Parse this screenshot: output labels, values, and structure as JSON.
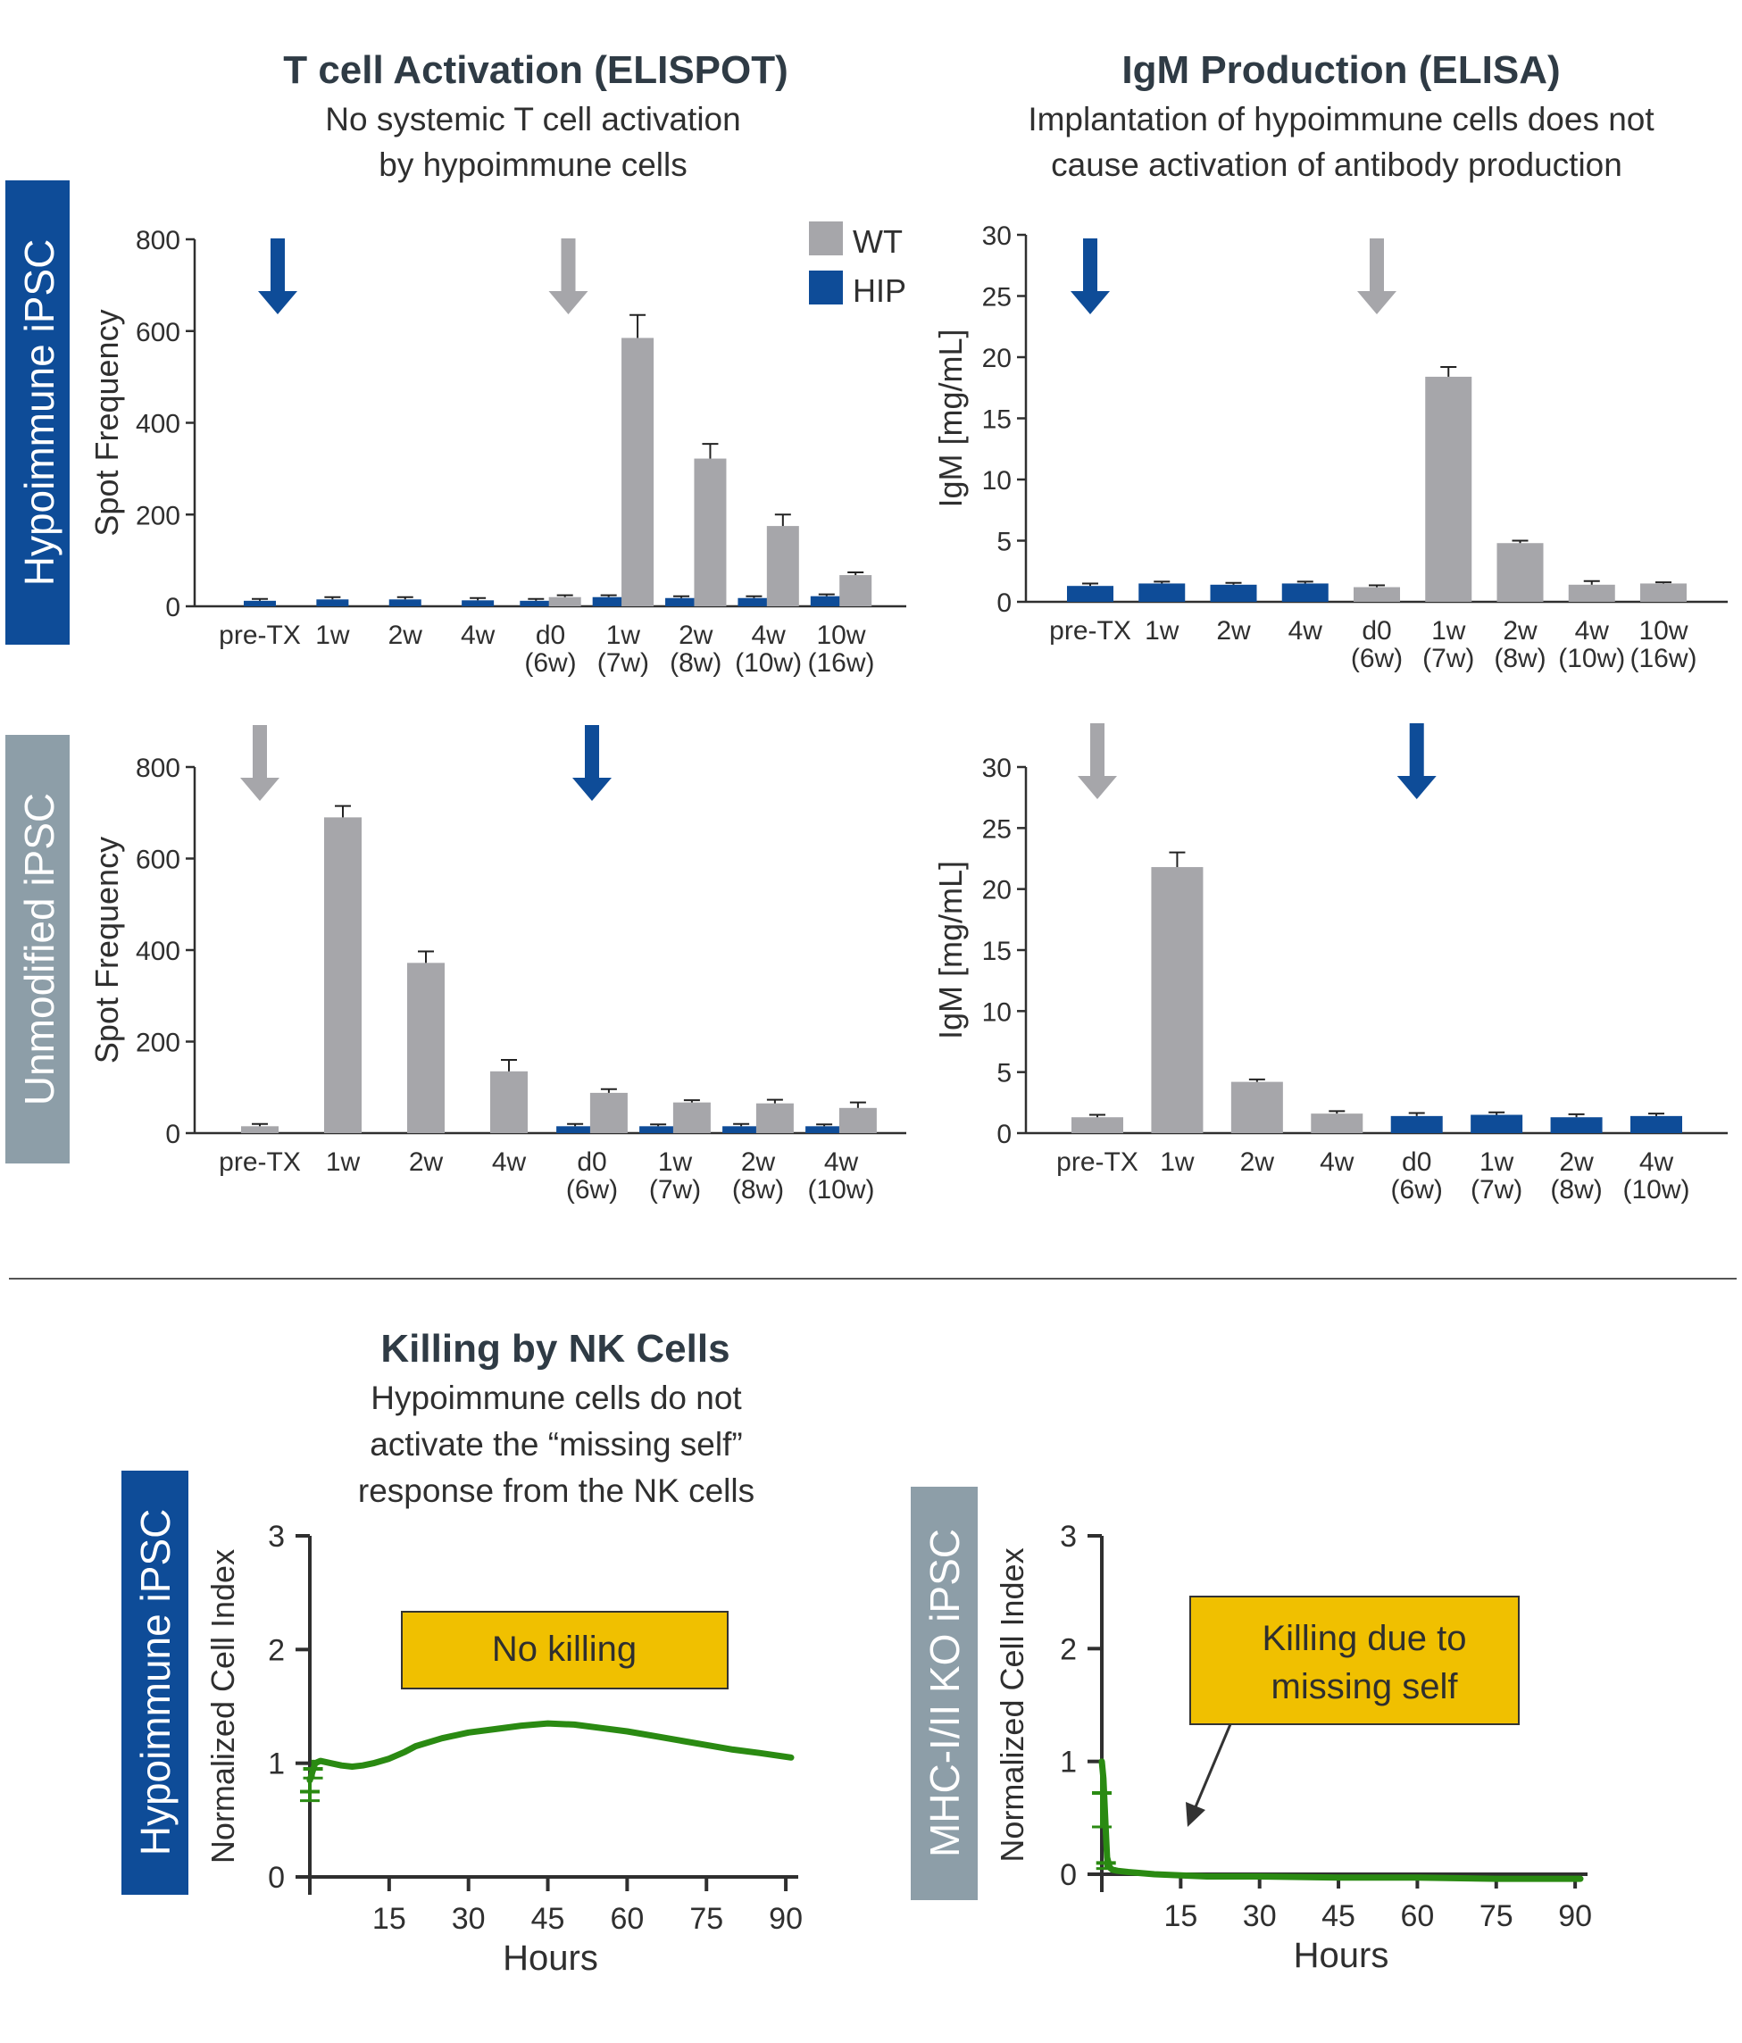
{
  "colors": {
    "wt": "#a6a6aa",
    "hip": "#0e4c98",
    "navy_label": "#0e4c98",
    "gray_label": "#8d9ea8",
    "curve": "#2a8a12",
    "annotation_box": "#f0c000",
    "axis": "#2f2f2f"
  },
  "headers": {
    "elispot": {
      "title": "T cell Activation (ELISPOT)",
      "sub1": "No systemic T cell activation",
      "sub2": "by hypoimmune cells"
    },
    "elisa": {
      "title": "IgM Production (ELISA)",
      "sub1": "Implantation of hypoimmune cells does not",
      "sub2": "cause activation of antibody production"
    },
    "nk": {
      "title": "Killing by NK Cells",
      "sub1": "Hypoimmune cells do not",
      "sub2": "activate the “missing self”",
      "sub3": "response from the NK cells"
    }
  },
  "row_labels": {
    "hip_top": "Hypoimmune iPSC",
    "unmod": "Unmodified iPSC",
    "hip_nk": "Hypoimmune iPSC",
    "ko_nk": "MHC-I/II KO iPSC"
  },
  "legend": {
    "wt": "WT",
    "hip": "HIP"
  },
  "annotations": {
    "no_killing": "No killing",
    "killing_line1": "Killing due to",
    "killing_line2": "missing self"
  },
  "chart_data": [
    {
      "id": "elispot_hip",
      "type": "bar",
      "ylabel": "Spot Frequency",
      "ylim": [
        0,
        800
      ],
      "yticks": [
        0,
        200,
        400,
        600,
        800
      ],
      "categories": [
        [
          "pre-TX"
        ],
        [
          "1w"
        ],
        [
          "2w"
        ],
        [
          "4w"
        ],
        [
          "d0",
          "(6w)"
        ],
        [
          "1w",
          "(7w)"
        ],
        [
          "2w",
          "(8w)"
        ],
        [
          "4w",
          "(10w)"
        ],
        [
          "10w",
          "(16w)"
        ]
      ],
      "series": [
        {
          "name": "HIP",
          "values": [
            12,
            15,
            15,
            13,
            12,
            20,
            18,
            18,
            22
          ],
          "errors": [
            4,
            5,
            5,
            5,
            4,
            4,
            4,
            4,
            4
          ]
        },
        {
          "name": "WT",
          "values": [
            null,
            null,
            null,
            null,
            20,
            585,
            322,
            175,
            68
          ],
          "errors": [
            null,
            null,
            null,
            null,
            4,
            50,
            32,
            25,
            6
          ]
        }
      ],
      "arrows": [
        {
          "series": "HIP",
          "category": 0
        },
        {
          "series": "WT",
          "category": 4
        }
      ]
    },
    {
      "id": "elisa_hip",
      "type": "bar",
      "ylabel": "IgM [mg/mL]",
      "ylim": [
        0,
        30
      ],
      "yticks": [
        0,
        5,
        10,
        15,
        20,
        25,
        30
      ],
      "categories": [
        [
          "pre-TX"
        ],
        [
          "1w"
        ],
        [
          "2w"
        ],
        [
          "4w"
        ],
        [
          "d0",
          "(6w)"
        ],
        [
          "1w",
          "(7w)"
        ],
        [
          "2w",
          "(8w)"
        ],
        [
          "4w",
          "(10w)"
        ],
        [
          "10w",
          "(16w)"
        ]
      ],
      "series": [
        {
          "name": "HIP",
          "values": [
            1.3,
            1.5,
            1.4,
            1.5,
            null,
            null,
            null,
            null,
            null
          ],
          "errors": [
            0.2,
            0.15,
            0.15,
            0.15,
            null,
            null,
            null,
            null,
            null
          ]
        },
        {
          "name": "WT",
          "values": [
            null,
            null,
            null,
            null,
            1.2,
            18.4,
            4.8,
            1.4,
            1.5
          ],
          "errors": [
            null,
            null,
            null,
            null,
            0.15,
            0.8,
            0.2,
            0.3,
            0.1
          ]
        }
      ],
      "arrows": [
        {
          "series": "HIP",
          "category": 0
        },
        {
          "series": "WT",
          "category": 4
        }
      ]
    },
    {
      "id": "elispot_unmod",
      "type": "bar",
      "ylabel": "Spot Frequency",
      "ylim": [
        0,
        800
      ],
      "yticks": [
        0,
        200,
        400,
        600,
        800
      ],
      "categories": [
        [
          "pre-TX"
        ],
        [
          "1w"
        ],
        [
          "2w"
        ],
        [
          "4w"
        ],
        [
          "d0",
          "(6w)"
        ],
        [
          "1w",
          "(7w)"
        ],
        [
          "2w",
          "(8w)"
        ],
        [
          "4w",
          "(10w)"
        ]
      ],
      "series": [
        {
          "name": "HIP",
          "values": [
            null,
            null,
            null,
            null,
            15,
            15,
            15,
            15
          ],
          "errors": [
            null,
            null,
            null,
            null,
            5,
            4,
            5,
            4
          ]
        },
        {
          "name": "WT",
          "values": [
            15,
            690,
            372,
            135,
            88,
            67,
            65,
            55
          ],
          "errors": [
            5,
            25,
            25,
            25,
            8,
            5,
            8,
            12
          ]
        }
      ],
      "arrows": [
        {
          "series": "WT",
          "category": 0
        },
        {
          "series": "HIP",
          "category": 4
        }
      ]
    },
    {
      "id": "elisa_unmod",
      "type": "bar",
      "ylabel": "IgM [mg/mL]",
      "ylim": [
        0,
        30
      ],
      "yticks": [
        0,
        5,
        10,
        15,
        20,
        25,
        30
      ],
      "categories": [
        [
          "pre-TX"
        ],
        [
          "1w"
        ],
        [
          "2w"
        ],
        [
          "4w"
        ],
        [
          "d0",
          "(6w)"
        ],
        [
          "1w",
          "(7w)"
        ],
        [
          "2w",
          "(8w)"
        ],
        [
          "4w",
          "(10w)"
        ]
      ],
      "series": [
        {
          "name": "HIP",
          "values": [
            null,
            null,
            null,
            null,
            1.4,
            1.5,
            1.3,
            1.4
          ],
          "errors": [
            null,
            null,
            null,
            null,
            0.25,
            0.2,
            0.25,
            0.2
          ]
        },
        {
          "name": "WT",
          "values": [
            1.3,
            21.8,
            4.2,
            1.6,
            null,
            null,
            null,
            null
          ],
          "errors": [
            0.2,
            1.2,
            0.2,
            0.2,
            null,
            null,
            null,
            null
          ]
        }
      ],
      "arrows": [
        {
          "series": "WT",
          "category": 0
        },
        {
          "series": "HIP",
          "category": 4
        }
      ]
    },
    {
      "id": "nk_hip",
      "type": "line",
      "ylabel": "Normalized Cell Index",
      "xlabel": "Hours",
      "xlim": [
        0,
        91
      ],
      "ylim": [
        0,
        3
      ],
      "xticks": [
        15,
        30,
        45,
        60,
        75,
        90
      ],
      "yticks": [
        0,
        1,
        2,
        3
      ],
      "series": [
        {
          "name": "Normalized Cell Index",
          "x": [
            0,
            1,
            2,
            4,
            6,
            8,
            10,
            12,
            15,
            18,
            20,
            25,
            30,
            35,
            40,
            45,
            50,
            55,
            60,
            65,
            70,
            75,
            80,
            85,
            91
          ],
          "y": [
            0.85,
            1.0,
            1.02,
            1.0,
            0.98,
            0.97,
            0.98,
            1.0,
            1.04,
            1.1,
            1.15,
            1.22,
            1.27,
            1.3,
            1.33,
            1.35,
            1.34,
            1.31,
            1.28,
            1.24,
            1.2,
            1.16,
            1.12,
            1.09,
            1.05
          ],
          "error_bars": [
            {
              "x": 0,
              "y": 0.75,
              "err": 0.08
            },
            {
              "x": 0.6,
              "y": 0.95,
              "err": 0.08
            }
          ]
        }
      ]
    },
    {
      "id": "nk_ko",
      "type": "line",
      "ylabel": "Normalized Cell Index",
      "xlabel": "Hours",
      "xlim": [
        0,
        91
      ],
      "ylim": [
        0,
        3
      ],
      "xticks": [
        15,
        30,
        45,
        60,
        75,
        90
      ],
      "yticks": [
        0,
        1,
        2,
        3
      ],
      "series": [
        {
          "name": "Normalized Cell Index",
          "x": [
            0,
            0.3,
            0.7,
            1.0,
            1.5,
            2,
            3,
            5,
            10,
            15,
            20,
            30,
            45,
            60,
            75,
            91
          ],
          "y": [
            1.0,
            0.85,
            0.45,
            0.15,
            0.06,
            0.04,
            0.03,
            0.02,
            0.0,
            -0.01,
            -0.02,
            -0.02,
            -0.03,
            -0.03,
            -0.04,
            -0.04
          ],
          "error_bars": [
            {
              "x": 0,
              "y": 0.72,
              "err": 0.3
            },
            {
              "x": 0.8,
              "y": 0.1,
              "err": 0.05
            }
          ]
        }
      ]
    }
  ]
}
